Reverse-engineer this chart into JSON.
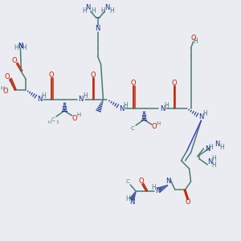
{
  "bg_color": "#eaecf2",
  "C": "#4a7c70",
  "N": "#1a2e8a",
  "O": "#cc2200",
  "H": "#4a7c70",
  "lw": 1.1,
  "fs": 6.0,
  "fss": 5.0
}
